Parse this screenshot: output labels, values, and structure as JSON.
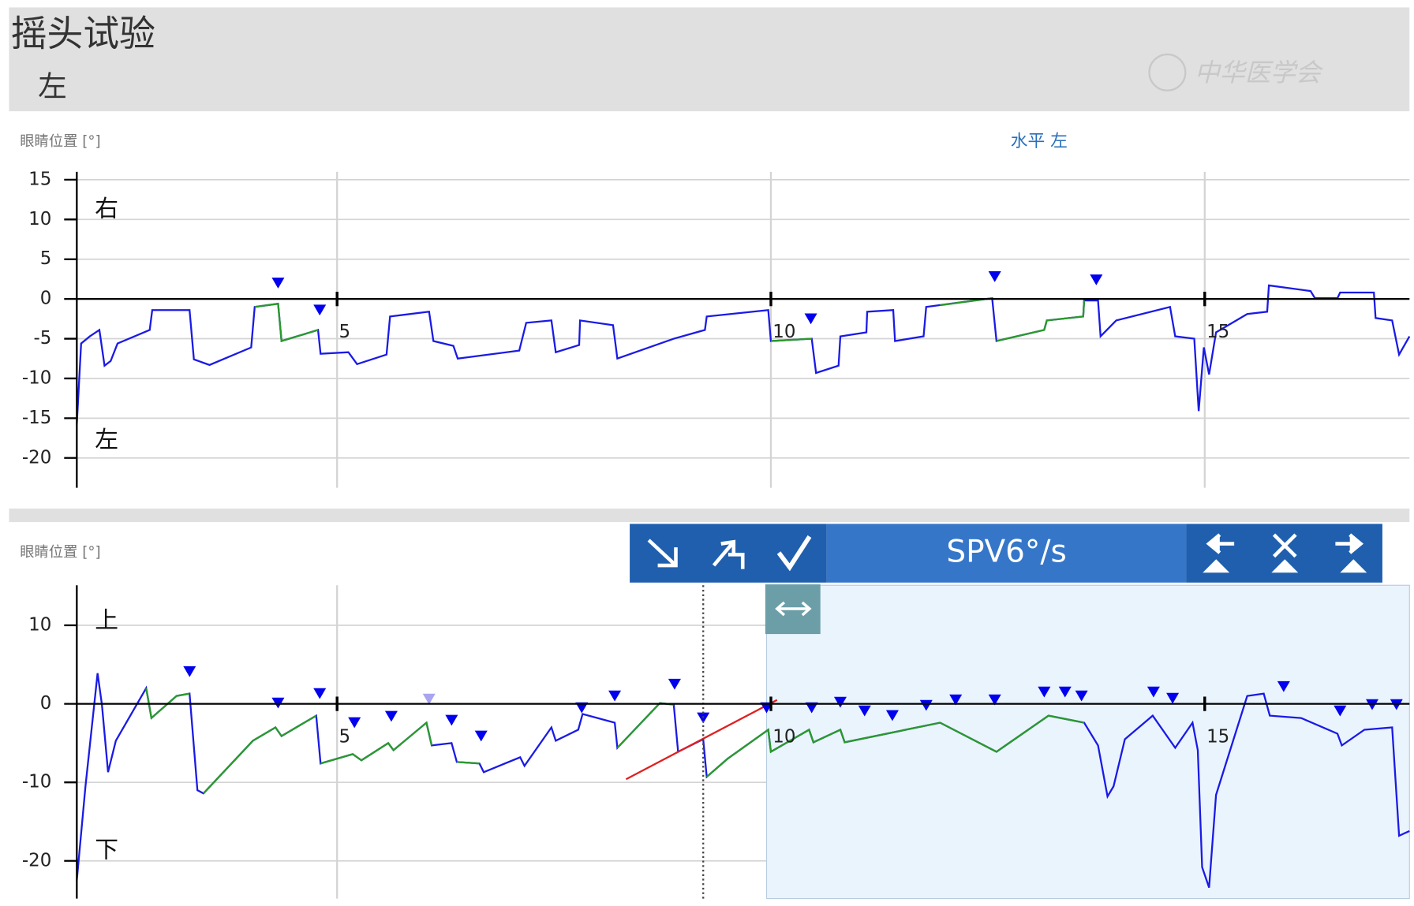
{
  "header": {
    "title": "摇头试验",
    "subtitle": "左",
    "watermark": "中华医学会"
  },
  "toolbar": {
    "label": "SPV6°/s"
  },
  "chart_data": [
    {
      "type": "line",
      "title": "水平 左",
      "ylabel": "眼睛位置 [°]",
      "top_label": "右",
      "bottom_label": "左",
      "xlim": [
        2,
        17.36
      ],
      "xticks": [
        5,
        10,
        15
      ],
      "ylim": [
        -23.75,
        16
      ],
      "yticks": [
        15,
        10,
        5,
        0,
        -5,
        -10,
        -15,
        -20
      ],
      "grid": true,
      "series": [
        {
          "style": "line",
          "color": "#1a1ae6",
          "x": [
            2.0,
            2.05,
            2.15,
            2.26,
            2.32,
            2.39,
            2.47,
            2.84,
            2.87,
            3.3,
            3.35,
            3.53,
            4.01,
            4.05,
            4.32,
            4.36,
            4.78,
            4.81,
            5.13,
            5.23,
            5.57,
            5.61,
            6.06,
            6.11,
            6.34,
            6.39,
            7.1,
            7.18,
            7.47,
            7.52,
            7.79,
            7.8,
            8.18,
            8.23,
            8.88,
            9.24,
            9.26,
            9.97,
            10.0,
            10.47,
            10.52,
            10.78,
            10.8,
            11.1,
            11.11,
            11.41,
            11.43,
            11.76,
            11.79,
            12.55,
            12.6,
            13.15,
            13.18,
            13.6,
            13.61,
            13.77,
            13.8,
            13.98,
            14.6,
            14.66,
            14.88,
            14.93,
            14.99,
            15.05,
            15.13,
            15.49,
            15.72,
            15.74,
            16.22,
            16.27,
            16.53,
            16.56,
            16.95,
            16.97,
            17.16,
            17.24,
            17.36
          ],
          "values": [
            -15.8,
            -5.6,
            -4.7,
            -3.9,
            -8.4,
            -7.8,
            -5.6,
            -3.9,
            -1.4,
            -1.4,
            -7.6,
            -8.3,
            -6.1,
            -1.0,
            -0.6,
            -5.3,
            -3.9,
            -6.9,
            -6.7,
            -8.2,
            -7.0,
            -2.2,
            -1.6,
            -5.3,
            -5.9,
            -7.5,
            -6.5,
            -3.0,
            -2.7,
            -6.7,
            -5.8,
            -2.7,
            -3.3,
            -7.5,
            -5.0,
            -3.9,
            -2.2,
            -1.4,
            -5.3,
            -5.0,
            -9.3,
            -8.4,
            -4.7,
            -4.2,
            -1.6,
            -1.4,
            -5.3,
            -4.7,
            -1.0,
            0.1,
            -5.3,
            -3.9,
            -2.7,
            -2.2,
            -0.2,
            -0.2,
            -4.7,
            -2.7,
            -1.0,
            -4.7,
            -5.0,
            -14.1,
            -6.1,
            -9.5,
            -4.2,
            -1.9,
            -1.6,
            1.7,
            1.0,
            0.1,
            0.1,
            0.8,
            0.8,
            -2.4,
            -2.7,
            -7.0,
            -4.7
          ]
        },
        {
          "style": "line",
          "color": "#2a9a2a",
          "x": [
            4.05,
            4.32,
            4.36,
            4.78,
            null,
            10.0,
            10.47,
            null,
            11.95,
            12.55,
            null,
            12.6,
            13.15,
            13.18,
            13.6,
            13.61
          ],
          "values": [
            -1.0,
            -0.6,
            -5.3,
            -3.9,
            null,
            -5.3,
            -5.0,
            null,
            -0.8,
            0.1,
            null,
            -5.3,
            -3.9,
            -2.7,
            -2.2,
            -0.2
          ]
        },
        {
          "style": "triangle",
          "color": "#0000ee",
          "x": [
            4.32,
            4.8,
            10.46,
            12.58,
            13.75
          ],
          "values": [
            2.0,
            -1.4,
            -2.5,
            2.8,
            2.4
          ]
        }
      ]
    },
    {
      "type": "line",
      "ylabel": "眼睛位置 [°]",
      "top_label": "上",
      "bottom_label": "下",
      "xlim": [
        2,
        17.36
      ],
      "xticks": [
        5,
        10,
        15
      ],
      "ylim": [
        -24.8,
        15.1
      ],
      "yticks": [
        10,
        0,
        -10,
        -20
      ],
      "grid": true,
      "cursor_x": 9.22,
      "selection_start": 9.95,
      "series": [
        {
          "style": "line",
          "color": "#1a1ae6",
          "x": [
            2.0,
            2.1,
            2.24,
            2.29,
            2.36,
            2.45,
            2.8,
            2.86,
            3.15,
            3.3,
            3.39,
            3.46,
            4.03,
            4.29,
            4.36,
            4.76,
            4.81,
            5.18,
            5.28,
            5.59,
            5.65,
            6.03,
            6.09,
            6.32,
            6.38,
            6.64,
            6.69,
            7.11,
            7.16,
            7.47,
            7.52,
            7.78,
            7.83,
            8.2,
            8.23,
            8.72,
            8.88,
            8.93,
            9.22,
            9.26,
            9.5,
            9.97,
            10.0,
            10.44,
            10.49,
            10.8,
            10.85,
            11.95,
            12.6,
            13.2,
            13.61,
            13.77,
            13.88,
            13.95,
            14.08,
            14.4,
            14.66,
            14.86,
            14.92,
            14.97,
            15.05,
            15.13,
            15.49,
            15.68,
            15.75,
            16.11,
            16.53,
            16.58,
            16.84,
            17.16,
            17.24,
            17.36
          ],
          "values": [
            -22.5,
            -10.5,
            3.9,
            -0.1,
            -8.7,
            -4.7,
            2.0,
            -1.8,
            1.0,
            1.3,
            -11.0,
            -11.4,
            -4.7,
            -3.0,
            -4.1,
            -1.5,
            -7.6,
            -6.4,
            -7.2,
            -5.0,
            -5.9,
            -2.4,
            -5.3,
            -5.0,
            -7.4,
            -7.6,
            -8.7,
            -6.8,
            -7.9,
            -3.0,
            -4.7,
            -3.3,
            -1.3,
            -2.4,
            -5.6,
            0.1,
            -0.1,
            -6.1,
            -4.5,
            -9.3,
            -7.0,
            -3.3,
            -6.1,
            -3.3,
            -4.9,
            -3.3,
            -4.9,
            -2.4,
            -6.1,
            -1.5,
            -2.4,
            -5.3,
            -11.8,
            -10.5,
            -4.5,
            -1.5,
            -5.6,
            -2.4,
            -5.9,
            -20.8,
            -23.4,
            -11.6,
            1.0,
            1.3,
            -1.5,
            -1.8,
            -3.8,
            -5.3,
            -3.3,
            -3.0,
            -16.8,
            -16.2
          ]
        },
        {
          "style": "line",
          "color": "#2a9a2a",
          "x": [
            2.8,
            2.86,
            3.15,
            3.3,
            null,
            3.46,
            4.03,
            4.29,
            4.36,
            4.76,
            null,
            4.81,
            5.18,
            5.28,
            5.59,
            5.65,
            6.03,
            6.09,
            null,
            6.38,
            6.64,
            null,
            8.23,
            8.72,
            8.88,
            null,
            9.26,
            9.5,
            9.97,
            10.0,
            10.44,
            10.49,
            10.8,
            10.85,
            11.95,
            12.6,
            13.2,
            13.61
          ],
          "values": [
            2.0,
            -1.8,
            1.0,
            1.3,
            null,
            -11.4,
            -4.7,
            -3.0,
            -4.1,
            -1.5,
            null,
            -7.6,
            -6.4,
            -7.2,
            -5.0,
            -5.9,
            -2.4,
            -5.3,
            null,
            -7.4,
            -7.6,
            null,
            -5.6,
            0.1,
            -0.1,
            null,
            -9.3,
            -7.0,
            -3.3,
            -6.1,
            -3.3,
            -4.9,
            -3.3,
            -4.9,
            -2.4,
            -6.1,
            -1.5,
            -2.4
          ]
        },
        {
          "style": "line",
          "color": "#e02020",
          "x": [
            8.33,
            10.07
          ],
          "values": [
            -9.6,
            0.5
          ]
        },
        {
          "style": "triangle",
          "color": "#0000ee",
          "x": [
            3.3,
            4.32,
            4.8,
            5.2,
            5.625,
            6.32,
            6.66,
            7.82,
            8.2,
            8.89,
            9.22,
            9.95,
            10.47,
            10.8,
            11.08,
            11.4,
            11.79,
            12.13,
            12.58,
            13.15,
            13.39,
            13.58,
            14.41,
            14.63,
            15.91,
            16.56,
            16.93,
            17.21
          ],
          "values": [
            4.1,
            0.1,
            1.3,
            -2.4,
            -1.6,
            -2.1,
            -4.1,
            -0.5,
            1.0,
            2.5,
            -1.8,
            -0.5,
            -0.5,
            0.2,
            -0.9,
            -1.5,
            -0.2,
            0.5,
            0.5,
            1.5,
            1.5,
            1.0,
            1.5,
            0.7,
            2.2,
            -0.9,
            -0.1,
            -0.1
          ]
        },
        {
          "style": "triangle",
          "color": "#a9a4f0",
          "x": [
            6.06
          ],
          "values": [
            0.6
          ]
        }
      ]
    }
  ]
}
